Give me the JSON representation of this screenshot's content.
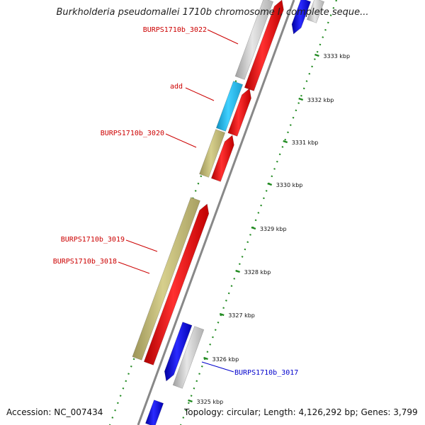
{
  "title": "Burkholderia pseudomallei 1710b chromosome I, complete seque...",
  "accession_text": "Accession: NC_007434",
  "summary_text": "Topology: circular; Length: 4,126,292 bp; Genes: 3,799",
  "colors": {
    "red_gene": "#ff0000",
    "blue_gene": "#0000ff",
    "cyan_gene": "#22bbee",
    "olive_gene": "#bdb76b",
    "gray_gene": "#c8c8c8",
    "backbone": "#888888",
    "tick_green": "#228b22",
    "label_red": "#cc0000",
    "label_blue": "#0000cc"
  },
  "ticks": [
    {
      "label": "3333 kbp"
    },
    {
      "label": "3332 kbp"
    },
    {
      "label": "3331 kbp"
    },
    {
      "label": "3330 kbp"
    },
    {
      "label": "3329 kbp"
    },
    {
      "label": "3328 kbp"
    },
    {
      "label": "3327 kbp"
    },
    {
      "label": "3326 kbp"
    },
    {
      "label": "3325 kbp"
    }
  ],
  "gene_labels": [
    {
      "text": "BURPS1710b_3022",
      "color": "red"
    },
    {
      "text": "add",
      "color": "red"
    },
    {
      "text": "BURPS1710b_3020",
      "color": "red"
    },
    {
      "text": "BURPS1710b_3019",
      "color": "red"
    },
    {
      "text": "BURPS1710b_3018",
      "color": "red"
    },
    {
      "text": "BURPS1710b_3017",
      "color": "blue"
    }
  ]
}
